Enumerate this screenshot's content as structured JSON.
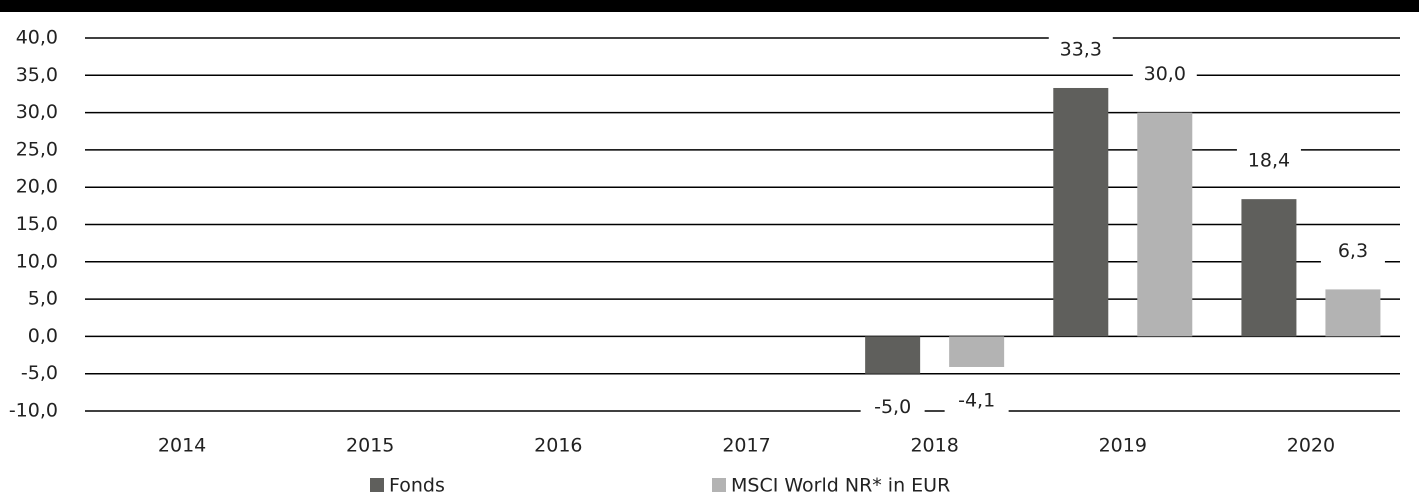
{
  "chart_data": {
    "type": "bar",
    "categories": [
      "2014",
      "2015",
      "2016",
      "2017",
      "2018",
      "2019",
      "2020"
    ],
    "series": [
      {
        "name": "Fonds",
        "color": "#5f5f5c",
        "values": [
          null,
          null,
          null,
          null,
          -5.0,
          33.3,
          18.4
        ],
        "value_labels": [
          null,
          null,
          null,
          null,
          "-5,0",
          "33,3",
          "18,4"
        ]
      },
      {
        "name": "MSCI World NR* in EUR",
        "color": "#b3b3b3",
        "values": [
          null,
          null,
          null,
          null,
          -4.1,
          30.0,
          6.3
        ],
        "value_labels": [
          null,
          null,
          null,
          null,
          "-4,1",
          "30,0",
          "6,3"
        ]
      }
    ],
    "ylim": [
      -10,
      40
    ],
    "yticks": [
      {
        "value": -10,
        "label": "-10,0"
      },
      {
        "value": -5,
        "label": "-5,0"
      },
      {
        "value": 0,
        "label": "0,0"
      },
      {
        "value": 5,
        "label": "5,0"
      },
      {
        "value": 10,
        "label": "10,0"
      },
      {
        "value": 15,
        "label": "15,0"
      },
      {
        "value": 20,
        "label": "20,0"
      },
      {
        "value": 25,
        "label": "25,0"
      },
      {
        "value": 30,
        "label": "30,0"
      },
      {
        "value": 35,
        "label": "35,0"
      },
      {
        "value": 40,
        "label": "40,0"
      }
    ],
    "grid": true,
    "legend": "bottom"
  }
}
